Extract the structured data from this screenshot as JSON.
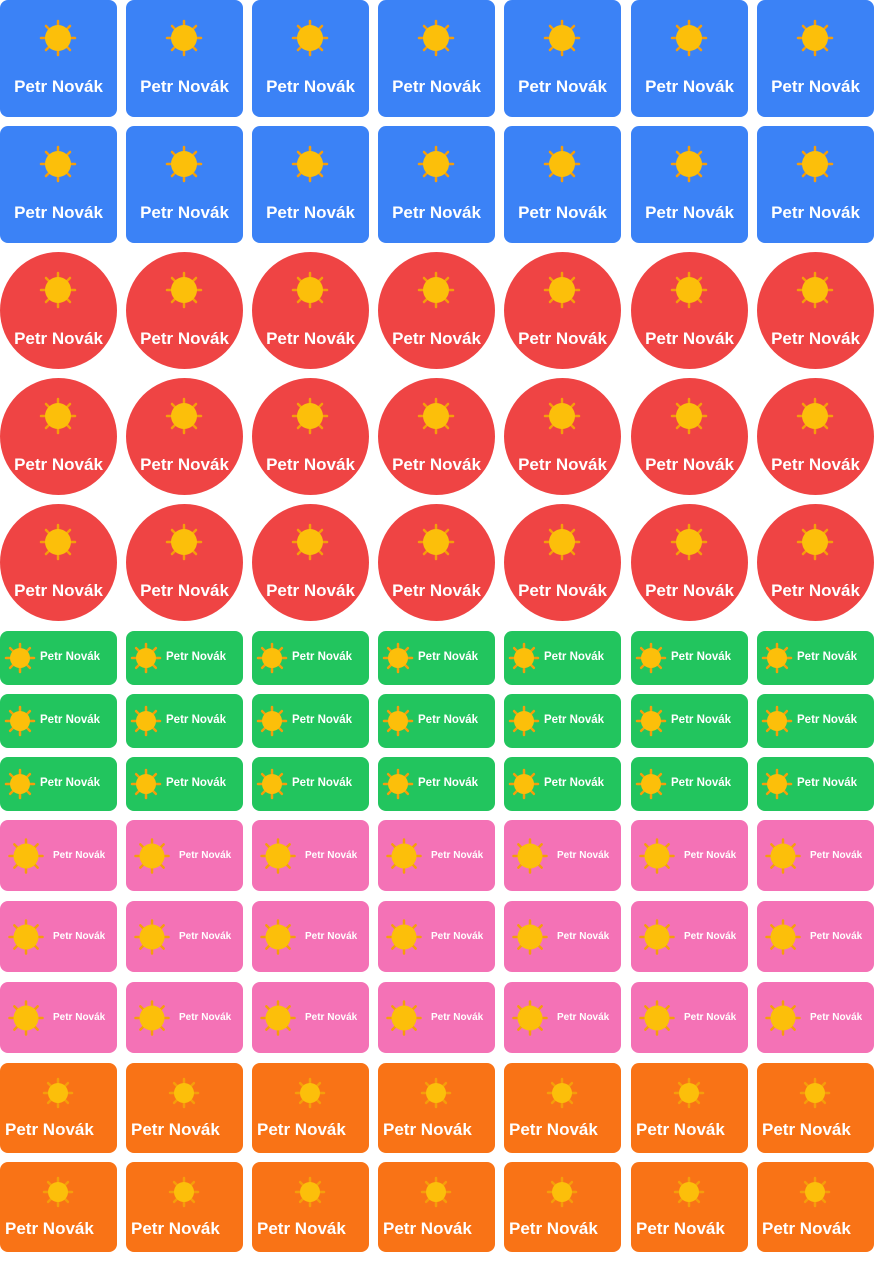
{
  "sheet": {
    "columns": 7,
    "sun_colors": {
      "body": "#FCBF0A",
      "rays": "#F59E0B"
    },
    "sections": [
      {
        "style": "blue",
        "shape": "rounded-square",
        "color": "#3B82F6",
        "rows": 2,
        "name": "Petr Novák",
        "icon": "sun-icon"
      },
      {
        "style": "red",
        "shape": "circle",
        "color": "#EF4444",
        "rows": 3,
        "name": "Petr Novák",
        "icon": "sun-icon"
      },
      {
        "style": "green",
        "shape": "rounded-rectangle",
        "color": "#22C55E",
        "rows": 3,
        "name": "Petr Novák",
        "icon": "sun-icon"
      },
      {
        "style": "pink",
        "shape": "rounded-rectangle",
        "color": "#F472B6",
        "rows": 3,
        "name": "Petr Novák",
        "icon": "sun-icon"
      },
      {
        "style": "orange",
        "shape": "rounded-rectangle",
        "color": "#F97316",
        "rows": 2,
        "name": "Petr Novák",
        "icon": "sun-icon"
      }
    ]
  }
}
